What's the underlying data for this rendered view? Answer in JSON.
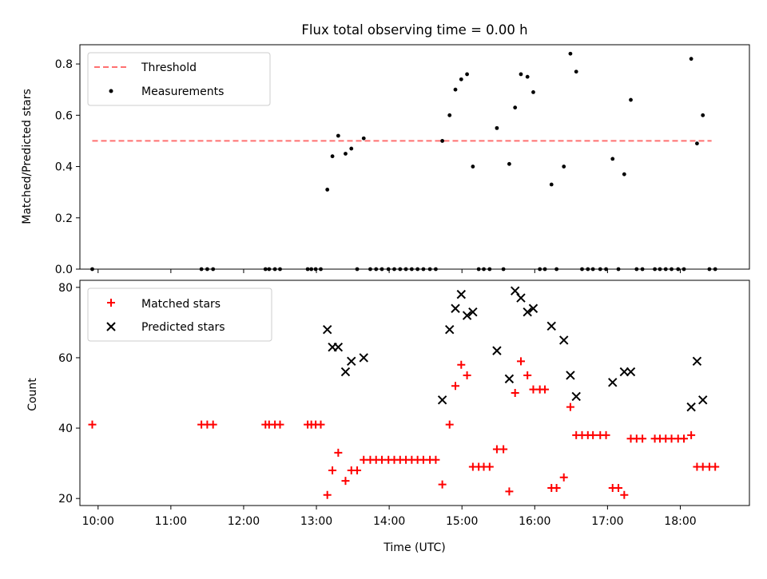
{
  "chart_data": [
    {
      "type": "line+scatter",
      "title": "Flux total observing time = 0.00 h",
      "xlabel": "",
      "ylabel": "Matched/Predicted stars",
      "xlim": [
        9.75,
        18.95
      ],
      "ylim": [
        0,
        0.875
      ],
      "yticks": [
        0.0,
        0.2,
        0.4,
        0.6,
        0.8
      ],
      "grid": false,
      "legend_position": "top-left",
      "threshold": {
        "name": "Threshold",
        "y": 0.5,
        "x": [
          9.92,
          18.43
        ],
        "color": "#ff7070"
      },
      "series": [
        {
          "name": "Measurements",
          "color": "#000000",
          "x": [
            9.92,
            11.42,
            11.5,
            11.58,
            12.3,
            12.35,
            12.43,
            12.5,
            12.88,
            12.93,
            12.99,
            13.06,
            13.15,
            13.22,
            13.3,
            13.4,
            13.48,
            13.56,
            13.65,
            13.74,
            13.82,
            13.9,
            13.99,
            14.07,
            14.15,
            14.23,
            14.31,
            14.39,
            14.47,
            14.56,
            14.64,
            14.73,
            14.83,
            14.91,
            14.99,
            15.07,
            15.15,
            15.23,
            15.3,
            15.38,
            15.48,
            15.57,
            15.65,
            15.73,
            15.81,
            15.9,
            15.98,
            16.07,
            16.14,
            16.23,
            16.3,
            16.4,
            16.49,
            16.57,
            16.65,
            16.73,
            16.8,
            16.9,
            16.98,
            17.07,
            17.15,
            17.23,
            17.32,
            17.4,
            17.48,
            17.65,
            17.72,
            17.8,
            17.88,
            17.97,
            18.05,
            18.15,
            18.23,
            18.31,
            18.4,
            18.48
          ],
          "y": [
            0.0,
            0.0,
            0.0,
            0.0,
            0.0,
            0.0,
            0.0,
            0.0,
            0.0,
            0.0,
            0.0,
            0.0,
            0.31,
            0.44,
            0.52,
            0.45,
            0.47,
            0.0,
            0.51,
            0.0,
            0.0,
            0.0,
            0.0,
            0.0,
            0.0,
            0.0,
            0.0,
            0.0,
            0.0,
            0.0,
            0.0,
            0.5,
            0.6,
            0.7,
            0.74,
            0.76,
            0.4,
            0.0,
            0.0,
            0.0,
            0.55,
            0.0,
            0.41,
            0.63,
            0.76,
            0.75,
            0.69,
            0.0,
            0.0,
            0.33,
            0.0,
            0.4,
            0.84,
            0.77,
            0.0,
            0.0,
            0.0,
            0.0,
            0.0,
            0.43,
            0.0,
            0.37,
            0.66,
            0.0,
            0.0,
            0.0,
            0.0,
            0.0,
            0.0,
            0.0,
            0.0,
            0.82,
            0.49,
            0.6,
            0.0,
            0.0
          ]
        }
      ]
    },
    {
      "type": "scatter",
      "title": "",
      "xlabel": "Time (UTC)",
      "ylabel": "Count",
      "xlim": [
        9.75,
        18.95
      ],
      "ylim": [
        18,
        82
      ],
      "yticks": [
        20,
        40,
        60,
        80
      ],
      "xtick_values": [
        10,
        11,
        12,
        13,
        14,
        15,
        16,
        17,
        18
      ],
      "xtick_labels": [
        "10:00",
        "11:00",
        "12:00",
        "13:00",
        "14:00",
        "15:00",
        "16:00",
        "17:00",
        "18:00"
      ],
      "grid": false,
      "legend_position": "top-left",
      "series": [
        {
          "name": "Matched stars",
          "marker": "plus",
          "color": "#ff0000",
          "x": [
            9.92,
            11.42,
            11.5,
            11.58,
            12.3,
            12.35,
            12.43,
            12.5,
            12.88,
            12.93,
            12.99,
            13.06,
            13.15,
            13.22,
            13.3,
            13.4,
            13.48,
            13.56,
            13.65,
            13.74,
            13.82,
            13.9,
            13.99,
            14.07,
            14.15,
            14.23,
            14.31,
            14.39,
            14.47,
            14.56,
            14.64,
            14.73,
            14.83,
            14.91,
            14.99,
            15.07,
            15.15,
            15.23,
            15.3,
            15.38,
            15.48,
            15.57,
            15.65,
            15.73,
            15.81,
            15.9,
            15.98,
            16.07,
            16.14,
            16.23,
            16.3,
            16.4,
            16.49,
            16.57,
            16.65,
            16.73,
            16.8,
            16.9,
            16.98,
            17.07,
            17.15,
            17.23,
            17.32,
            17.4,
            17.48,
            17.65,
            17.72,
            17.8,
            17.88,
            17.97,
            18.05,
            18.15,
            18.23,
            18.31,
            18.4,
            18.48
          ],
          "y": [
            41,
            41,
            41,
            41,
            41,
            41,
            41,
            41,
            41,
            41,
            41,
            41,
            21,
            28,
            33,
            25,
            28,
            28,
            31,
            31,
            31,
            31,
            31,
            31,
            31,
            31,
            31,
            31,
            31,
            31,
            31,
            24,
            41,
            52,
            58,
            55,
            29,
            29,
            29,
            29,
            34,
            34,
            22,
            50,
            59,
            55,
            51,
            51,
            51,
            23,
            23,
            26,
            46,
            38,
            38,
            38,
            38,
            38,
            38,
            23,
            23,
            21,
            37,
            37,
            37,
            37,
            37,
            37,
            37,
            37,
            37,
            38,
            29,
            29,
            29,
            29
          ]
        },
        {
          "name": "Predicted stars",
          "marker": "x",
          "color": "#000000",
          "x": [
            13.15,
            13.22,
            13.3,
            13.4,
            13.48,
            13.65,
            14.73,
            14.83,
            14.91,
            14.99,
            15.07,
            15.15,
            15.48,
            15.65,
            15.73,
            15.81,
            15.9,
            15.98,
            16.23,
            16.4,
            16.49,
            16.57,
            17.07,
            17.23,
            17.32,
            18.15,
            18.23,
            18.31
          ],
          "y": [
            68,
            63,
            63,
            56,
            59,
            60,
            48,
            68,
            74,
            78,
            72,
            73,
            62,
            54,
            79,
            77,
            73,
            74,
            69,
            65,
            55,
            49,
            53,
            56,
            56,
            46,
            59,
            48
          ]
        }
      ]
    }
  ]
}
